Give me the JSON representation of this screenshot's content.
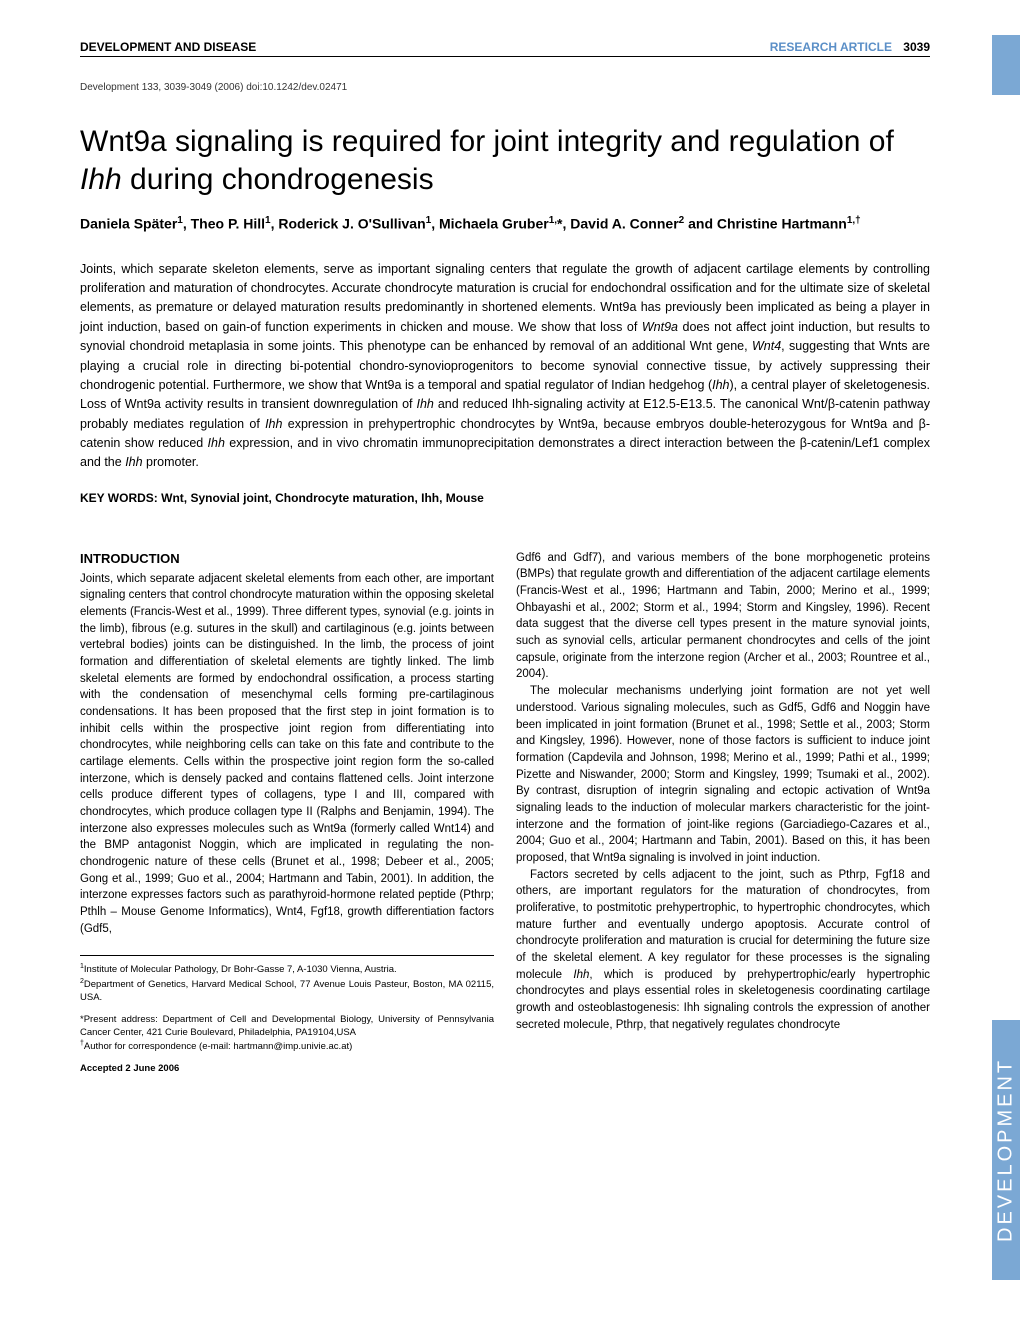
{
  "header": {
    "left": "DEVELOPMENT AND DISEASE",
    "right_label": "RESEARCH ARTICLE",
    "page_num": "3039"
  },
  "citation": "Development 133, 3039-3049 (2006) doi:10.1242/dev.02471",
  "title_pre": "Wnt9a signaling is required for joint integrity and regulation of ",
  "title_em": "Ihh",
  "title_post": " during chondrogenesis",
  "authors_html": "Daniela Später<sup>1</sup>, Theo P. Hill<sup>1</sup>, Roderick J. O'Sullivan<sup>1</sup>, Michaela Gruber<sup>1,</sup>*, David A. Conner<sup>2</sup> and Christine Hartmann<sup>1,†</sup>",
  "abstract": "Joints, which separate skeleton elements, serve as important signaling centers that regulate the growth of adjacent cartilage elements by controlling proliferation and maturation of chondrocytes. Accurate chondrocyte maturation is crucial for endochondral ossification and for the ultimate size of skeletal elements, as premature or delayed maturation results predominantly in shortened elements. Wnt9a has previously been implicated as being a player in joint induction, based on gain-of function experiments in chicken and mouse. We show that loss of <em>Wnt9a</em> does not affect joint induction, but results to synovial chondroid metaplasia in some joints. This phenotype can be enhanced by removal of an additional Wnt gene, <em>Wnt4</em>, suggesting that Wnts are playing a crucial role in directing bi-potential chondro-synovioprogenitors to become synovial connective tissue, by actively suppressing their chondrogenic potential. Furthermore, we show that Wnt9a is a temporal and spatial regulator of Indian hedgehog (<em>Ihh</em>), a central player of skeletogenesis. Loss of Wnt9a activity results in transient downregulation of <em>Ihh</em> and reduced Ihh-signaling activity at E12.5-E13.5. The canonical Wnt/β-catenin pathway probably mediates regulation of <em>Ihh</em> expression in prehypertrophic chondrocytes by Wnt9a, because embryos double-heterozygous for Wnt9a and β-catenin show reduced <em>Ihh</em> expression, and in vivo chromatin immunoprecipitation demonstrates a direct interaction between the β-catenin/Lef1 complex and the <em>Ihh</em> promoter.",
  "keywords": "KEY WORDS: Wnt, Synovial joint, Chondrocyte maturation, Ihh, Mouse",
  "intro_heading": "INTRODUCTION",
  "col1_p1": "Joints, which separate adjacent skeletal elements from each other, are important signaling centers that control chondrocyte maturation within the opposing skeletal elements (Francis-West et al., 1999). Three different types, synovial (e.g. joints in the limb), fibrous (e.g. sutures in the skull) and cartilaginous (e.g. joints between vertebral bodies) joints can be distinguished. In the limb, the process of joint formation and differentiation of skeletal elements are tightly linked. The limb skeletal elements are formed by endochondral ossification, a process starting with the condensation of mesenchymal cells forming pre-cartilaginous condensations. It has been proposed that the first step in joint formation is to inhibit cells within the prospective joint region from differentiating into chondrocytes, while neighboring cells can take on this fate and contribute to the cartilage elements. Cells within the prospective joint region form the so-called interzone, which is densely packed and contains flattened cells. Joint interzone cells produce different types of collagens, type I and III, compared with chondrocytes, which produce collagen type II (Ralphs and Benjamin, 1994). The interzone also expresses molecules such as Wnt9a (formerly called Wnt14) and the BMP antagonist Noggin, which are implicated in regulating the non-chondrogenic nature of these cells (Brunet et al., 1998; Debeer et al., 2005; Gong et al., 1999; Guo et al., 2004; Hartmann and Tabin, 2001). In addition, the interzone expresses factors such as parathyroid-hormone related peptide (Pthrp; Pthlh – Mouse Genome Informatics), Wnt4, Fgf18, growth differentiation factors (Gdf5,",
  "col2_p1": "Gdf6 and Gdf7), and various members of the bone morphogenetic proteins (BMPs) that regulate growth and differentiation of the adjacent cartilage elements (Francis-West et al., 1996; Hartmann and Tabin, 2000; Merino et al., 1999; Ohbayashi et al., 2002; Storm et al., 1994; Storm and Kingsley, 1996). Recent data suggest that the diverse cell types present in the mature synovial joints, such as synovial cells, articular permanent chondrocytes and cells of the joint capsule, originate from the interzone region (Archer et al., 2003; Rountree et al., 2004).",
  "col2_p2": "The molecular mechanisms underlying joint formation are not yet well understood. Various signaling molecules, such as Gdf5, Gdf6 and Noggin have been implicated in joint formation (Brunet et al., 1998; Settle et al., 2003; Storm and Kingsley, 1996). However, none of those factors is sufficient to induce joint formation (Capdevila and Johnson, 1998; Merino et al., 1999; Pathi et al., 1999; Pizette and Niswander, 2000; Storm and Kingsley, 1999; Tsumaki et al., 2002). By contrast, disruption of integrin signaling and ectopic activation of Wnt9a signaling leads to the induction of molecular markers characteristic for the joint-interzone and the formation of joint-like regions (Garciadiego-Cazares et al., 2004; Guo et al., 2004; Hartmann and Tabin, 2001). Based on this, it has been proposed, that Wnt9a signaling is involved in joint induction.",
  "col2_p3": "Factors secreted by cells adjacent to the joint, such as Pthrp, Fgf18 and others, are important regulators for the maturation of chondrocytes, from proliferative, to postmitotic prehypertrophic, to hypertrophic chondrocytes, which mature further and eventually undergo apoptosis. Accurate control of chondrocyte proliferation and maturation is crucial for determining the future size of the skeletal element. A key regulator for these processes is the signaling molecule <em>Ihh</em>, which is produced by prehypertrophic/early hypertrophic chondrocytes and plays essential roles in skeletogenesis coordinating cartilage growth and osteoblastogenesis: Ihh signaling controls the expression of another secreted molecule, Pthrp, that negatively regulates chondrocyte",
  "affil1": "<sup>1</sup>Institute of Molecular Pathology, Dr Bohr-Gasse 7, A-1030 Vienna, Austria.",
  "affil2": "<sup>2</sup>Department of Genetics, Harvard Medical School, 77 Avenue Louis Pasteur, Boston, MA 02115, USA.",
  "present": "*Present address: Department of Cell and Developmental Biology, University of Pennsylvania Cancer Center, 421 Curie Boulevard, Philadelphia, PA19104,USA",
  "corresponding": "<sup>†</sup>Author for correspondence (e-mail: hartmann@imp.univie.ac.at)",
  "accepted": "Accepted 2 June 2006",
  "side_tab": "DEVELOPMENT"
}
